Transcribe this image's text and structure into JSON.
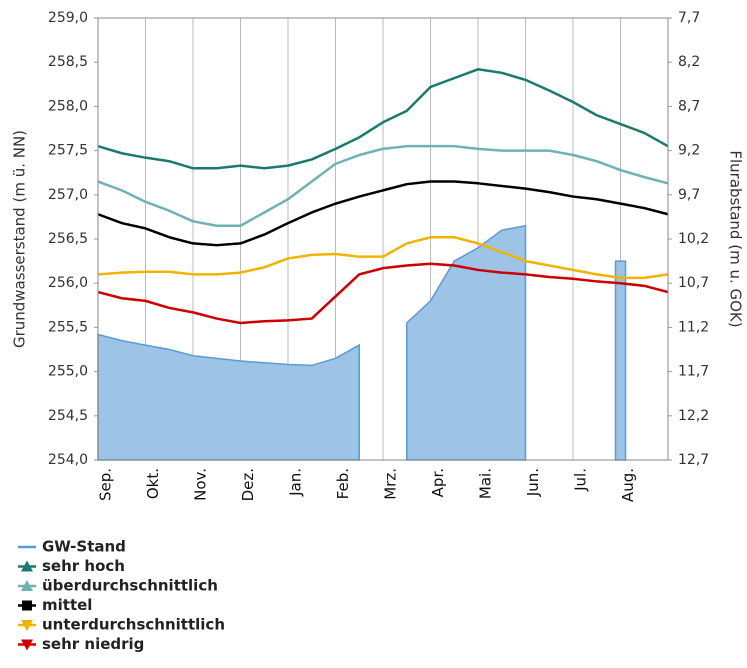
{
  "chart_data": {
    "type": "line",
    "y_label": "Grundwasserstand (m ü. NN)",
    "y2_label": "Flurabstand (m u. GOK)",
    "categories": [
      "Sep.",
      null,
      "Okt.",
      null,
      "Nov.",
      null,
      "Dez.",
      null,
      "Jan.",
      null,
      "Feb.",
      null,
      "Mrz.",
      null,
      "Apr.",
      null,
      "Mai.",
      null,
      "Jun.",
      null,
      "Jul.",
      null,
      "Aug.",
      null,
      null
    ],
    "ylim": [
      254.0,
      259.0
    ],
    "yticks": [
      {
        "value": 254.0,
        "label": "254,0"
      },
      {
        "value": 254.5,
        "label": "254,5"
      },
      {
        "value": 255.0,
        "label": "255,0"
      },
      {
        "value": 255.5,
        "label": "255,5"
      },
      {
        "value": 256.0,
        "label": "256,0"
      },
      {
        "value": 256.5,
        "label": "256,5"
      },
      {
        "value": 257.0,
        "label": "257,0"
      },
      {
        "value": 257.5,
        "label": "257,5"
      },
      {
        "value": 258.0,
        "label": "258,0"
      },
      {
        "value": 258.5,
        "label": "258,5"
      },
      {
        "value": 259.0,
        "label": "259,0"
      }
    ],
    "y2lim": [
      12.7,
      7.7
    ],
    "y2ticks": [
      {
        "value": 12.7,
        "label": "12,7"
      },
      {
        "value": 12.2,
        "label": "12,2"
      },
      {
        "value": 11.7,
        "label": "11,7"
      },
      {
        "value": 11.2,
        "label": "11,2"
      },
      {
        "value": 10.7,
        "label": "10,7"
      },
      {
        "value": 10.2,
        "label": "10,2"
      },
      {
        "value": 9.7,
        "label": "9,7"
      },
      {
        "value": 9.2,
        "label": "9,2"
      },
      {
        "value": 8.7,
        "label": "8,7"
      },
      {
        "value": 8.2,
        "label": "8,2"
      },
      {
        "value": 7.7,
        "label": "7,7"
      }
    ],
    "grid": "x",
    "legend": "bottom-left",
    "series": [
      {
        "name": "GW-Stand",
        "type": "area",
        "color": "#5b9bd5",
        "fill": "#9dc3e6",
        "marker": "none",
        "values": [
          255.42,
          255.35,
          255.3,
          255.25,
          255.18,
          255.15,
          255.12,
          255.1,
          255.08,
          255.07,
          255.15,
          255.3,
          null,
          255.55,
          255.8,
          256.25,
          256.4,
          256.6,
          256.65,
          null,
          null,
          null,
          256.25,
          null,
          null
        ]
      },
      {
        "name": "sehr hoch",
        "type": "line",
        "color": "#1a7a6e",
        "marker": "triangle-up",
        "values": [
          257.55,
          257.47,
          257.42,
          257.38,
          257.3,
          257.3,
          257.33,
          257.3,
          257.33,
          257.4,
          257.52,
          257.65,
          257.82,
          257.95,
          258.22,
          258.32,
          258.42,
          258.38,
          258.3,
          258.18,
          258.05,
          257.9,
          257.8,
          257.7,
          257.55
        ]
      },
      {
        "name": "überdurchschnittlich",
        "type": "line",
        "color": "#6fb2b2",
        "marker": "triangle-up",
        "values": [
          257.15,
          257.05,
          256.92,
          256.82,
          256.7,
          256.65,
          256.65,
          256.8,
          256.95,
          257.15,
          257.35,
          257.45,
          257.52,
          257.55,
          257.55,
          257.55,
          257.52,
          257.5,
          257.5,
          257.5,
          257.45,
          257.38,
          257.28,
          257.2,
          257.13
        ]
      },
      {
        "name": "mittel",
        "type": "line",
        "color": "#000000",
        "marker": "square",
        "values": [
          256.78,
          256.68,
          256.62,
          256.52,
          256.45,
          256.43,
          256.45,
          256.55,
          256.68,
          256.8,
          256.9,
          256.98,
          257.05,
          257.12,
          257.15,
          257.15,
          257.13,
          257.1,
          257.07,
          257.03,
          256.98,
          256.95,
          256.9,
          256.85,
          256.78
        ]
      },
      {
        "name": "unterdurchschnittlich",
        "type": "line",
        "color": "#f0b400",
        "marker": "triangle-down",
        "values": [
          256.1,
          256.12,
          256.13,
          256.13,
          256.1,
          256.1,
          256.12,
          256.18,
          256.28,
          256.32,
          256.33,
          256.3,
          256.3,
          256.45,
          256.52,
          256.52,
          256.45,
          256.35,
          256.25,
          256.2,
          256.15,
          256.1,
          256.06,
          256.06,
          256.1
        ]
      },
      {
        "name": "sehr niedrig",
        "type": "line",
        "color": "#cc0000",
        "marker": "triangle-down",
        "values": [
          255.9,
          255.83,
          255.8,
          255.72,
          255.67,
          255.6,
          255.55,
          255.57,
          255.58,
          255.6,
          255.85,
          256.1,
          256.17,
          256.2,
          256.22,
          256.2,
          256.15,
          256.12,
          256.1,
          256.07,
          256.05,
          256.02,
          256.0,
          255.97,
          255.9
        ]
      }
    ]
  }
}
